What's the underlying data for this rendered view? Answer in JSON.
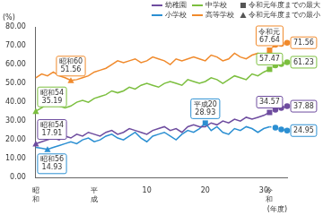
{
  "chart_data": {
    "type": "line",
    "ylabel": "(%)",
    "xlabel": "(年度)",
    "categories": [
      "昭和",
      null,
      null,
      null,
      null,
      null,
      null,
      null,
      null,
      null,
      "平成",
      null,
      null,
      null,
      null,
      null,
      null,
      null,
      null,
      "10",
      null,
      null,
      null,
      null,
      null,
      null,
      null,
      null,
      null,
      "20",
      null,
      null,
      null,
      null,
      null,
      null,
      null,
      null,
      null,
      "30",
      "令和",
      null,
      null,
      null
    ],
    "series": [
      {
        "name": "幼稚園",
        "color": "#6e4c9f",
        "values": [
          17.91,
          19,
          20,
          21,
          20,
          22,
          21,
          23,
          22,
          24,
          23,
          22,
          24,
          25,
          23,
          24,
          26,
          25,
          24,
          23,
          25,
          26,
          27,
          25,
          26,
          24,
          27,
          28,
          27,
          27,
          29,
          28,
          30,
          29,
          31,
          30,
          32,
          31,
          32,
          33,
          34.57,
          36,
          37,
          37.88
        ]
      },
      {
        "name": "中学校",
        "color": "#7cbf3f",
        "values": [
          35.19,
          37,
          39,
          40,
          38,
          37,
          38,
          40,
          41,
          40,
          42,
          43,
          44,
          46,
          45,
          46,
          48,
          47,
          49,
          50,
          49,
          48,
          50,
          51,
          50,
          49,
          52,
          51,
          50,
          51,
          53,
          52,
          50,
          52,
          54,
          53,
          52,
          55,
          54,
          56,
          57.47,
          59.5,
          60.3,
          61.23
        ]
      },
      {
        "name": "小学校",
        "color": "#2b8fd2",
        "values": [
          16,
          15.5,
          14.93,
          16,
          17,
          18,
          19,
          18,
          20,
          21,
          19,
          20,
          22,
          23,
          21,
          20,
          22,
          24,
          21,
          19,
          22,
          23,
          24,
          22,
          20,
          23,
          25,
          24,
          26,
          28.93,
          25,
          27,
          24,
          23,
          26,
          25,
          27,
          26,
          24,
          26,
          27,
          26.5,
          25.5,
          24.95
        ]
      },
      {
        "name": "高等学校",
        "color": "#f08a2c",
        "values": [
          53,
          55,
          54,
          56,
          54,
          53,
          51.56,
          52,
          53,
          54,
          56,
          57,
          58,
          60,
          62,
          61,
          62,
          63,
          61,
          62,
          64,
          63,
          62,
          60,
          63,
          62,
          63,
          64,
          63,
          62,
          65,
          64,
          62,
          63,
          66,
          64,
          63,
          65,
          66,
          63,
          67.64,
          70.5,
          71,
          71.56
        ]
      }
    ],
    "ylim": [
      0,
      80
    ],
    "yticks": [
      {
        "value": 0,
        "label": "0.00"
      },
      {
        "value": 10,
        "label": "10.00"
      },
      {
        "value": 20,
        "label": "20.00"
      },
      {
        "value": 30,
        "label": "30.00"
      },
      {
        "value": 40,
        "label": "40.00"
      },
      {
        "value": 50,
        "label": "50.00"
      },
      {
        "value": 60,
        "label": "60.00"
      },
      {
        "value": 70,
        "label": "70.00"
      },
      {
        "value": 80,
        "label": "80.00"
      }
    ],
    "grid": false,
    "legend": "top-right",
    "legend_markers": [
      {
        "marker": "square",
        "label": "令和元年度までの最大"
      },
      {
        "marker": "triangle",
        "label": "令和元年度までの最小"
      }
    ],
    "annotations": [
      {
        "series": "幼稚園",
        "at": 0,
        "text": "昭和54",
        "marker": "triangle"
      },
      {
        "series": "小学校",
        "at": 2,
        "text": "昭和56",
        "marker": "triangle"
      },
      {
        "series": "中学校",
        "at": 0,
        "text": "昭和54",
        "marker": "triangle"
      },
      {
        "series": "高等学校",
        "at": 6,
        "text": "昭和60",
        "marker": "triangle"
      },
      {
        "series": "小学校",
        "at": 29,
        "text": "平成20",
        "marker": "square"
      },
      {
        "series": "高等学校",
        "at": 40,
        "text": "令和元",
        "marker": "square"
      },
      {
        "series": "中学校",
        "at": 40,
        "marker": "square"
      },
      {
        "series": "幼稚園",
        "at": 40,
        "marker": "square"
      },
      {
        "series": "高等学校",
        "at": 43
      },
      {
        "series": "中学校",
        "at": 43
      },
      {
        "series": "幼稚園",
        "at": 43
      },
      {
        "series": "小学校",
        "at": 43
      }
    ]
  }
}
